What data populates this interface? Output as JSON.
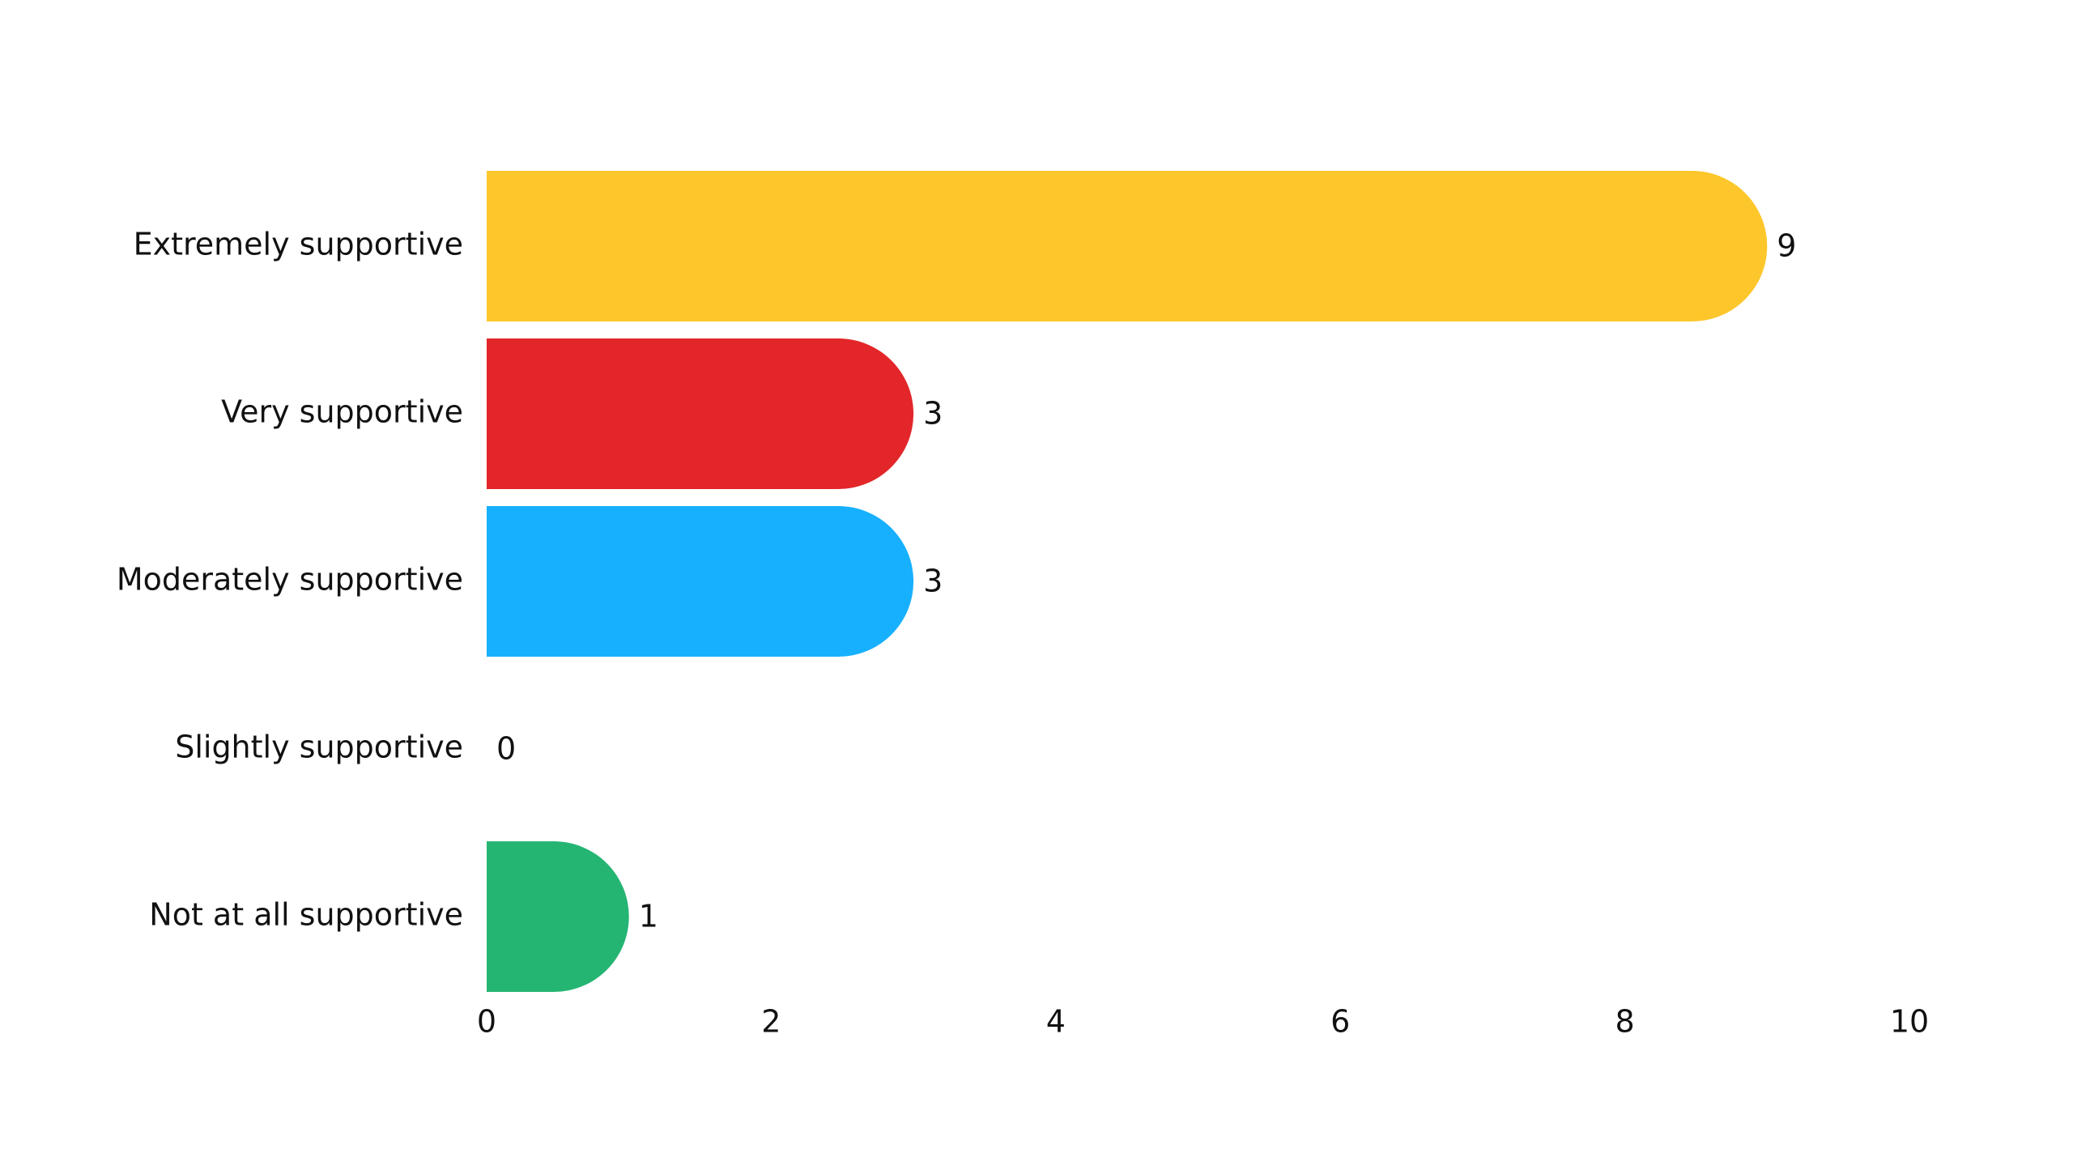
{
  "chart_data": {
    "type": "barh",
    "categories": [
      "Extremely supportive",
      "Very supportive",
      "Moderately supportive",
      "Slightly supportive",
      "Not at all supportive"
    ],
    "values": [
      9,
      3,
      3,
      0,
      1
    ],
    "colors": [
      "#fdc72b",
      "#e32629",
      "#17b0fe",
      "#8e44ad",
      "#25b573"
    ],
    "xlim": [
      0,
      10
    ],
    "xticks": [
      0,
      2,
      4,
      6,
      8,
      10
    ],
    "grid": false
  }
}
